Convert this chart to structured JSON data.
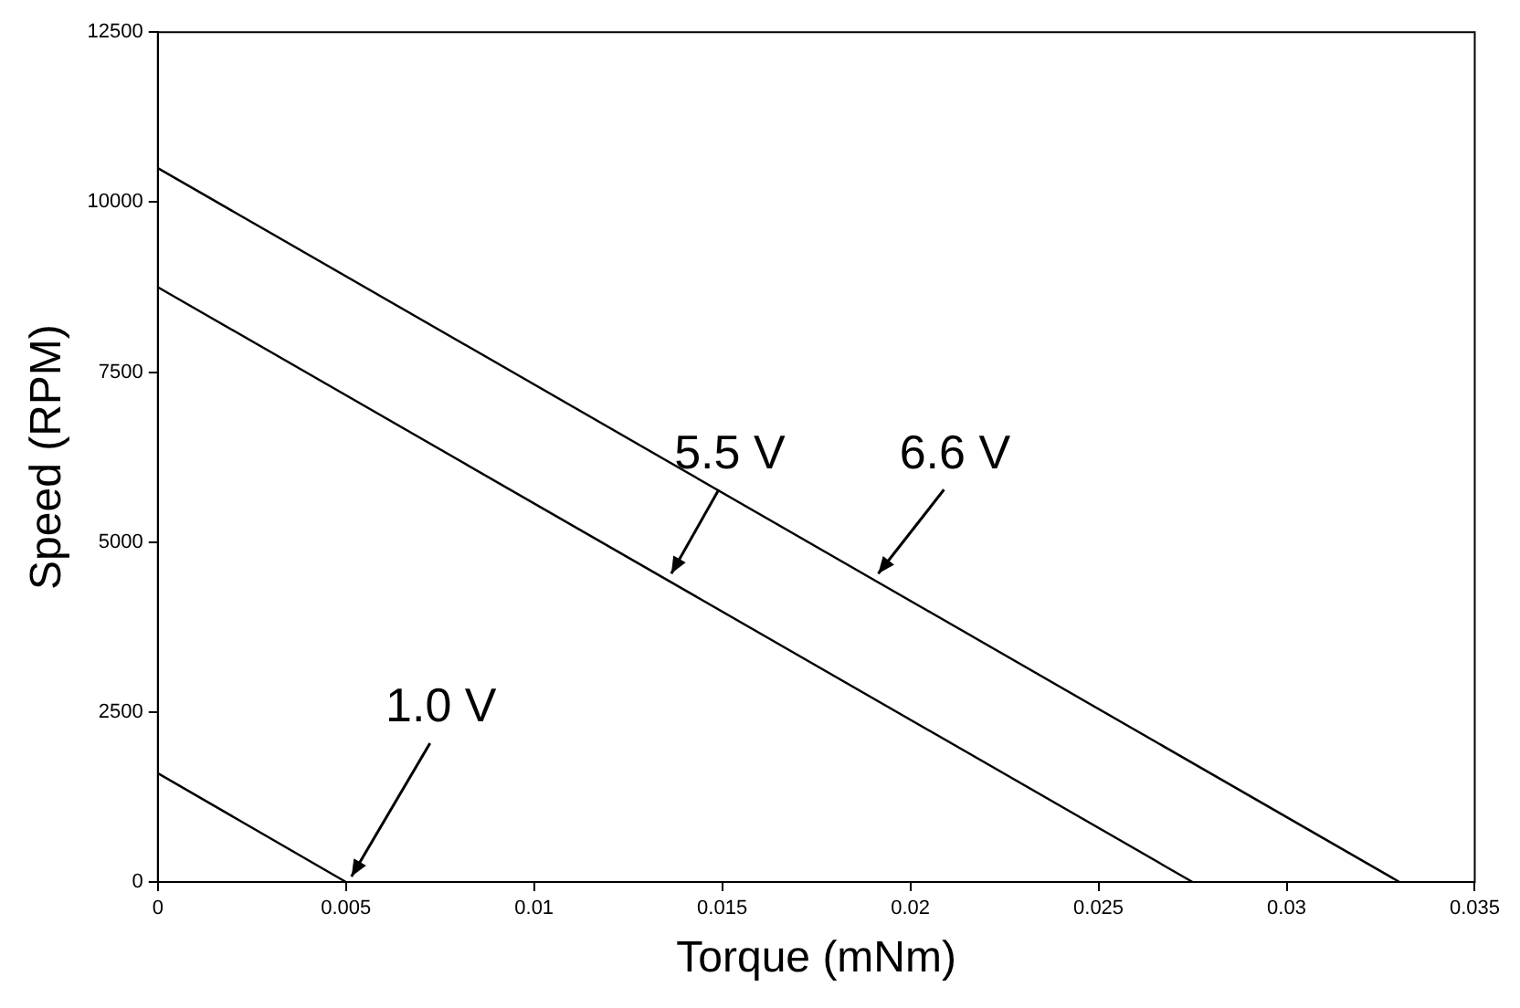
{
  "chart_data": {
    "type": "line",
    "xlabel": "Torque (mNm)",
    "ylabel": "Speed (RPM)",
    "marker": "none",
    "line_style": "solid",
    "grid": false,
    "xlim": [
      0,
      0.035
    ],
    "xticks": [
      0,
      0.005,
      0.01,
      0.015,
      0.02,
      0.025,
      0.03,
      0.035
    ],
    "ylim": [
      0,
      12500
    ],
    "yticks": [
      0,
      2500,
      5000,
      7500,
      10000,
      12500
    ],
    "series": [
      {
        "color": "#000000",
        "x": [
          0,
          0.033
        ],
        "values": [
          10500,
          0
        ]
      },
      {
        "color": "#000000",
        "x": [
          0,
          0.0275
        ],
        "values": [
          8750,
          0
        ]
      },
      {
        "color": "#000000",
        "x": [
          0,
          0.005
        ],
        "values": [
          1600,
          0
        ]
      }
    ],
    "annotations": [
      {
        "text": "5.5 V",
        "x": 0.0135,
        "y": 4455
      },
      {
        "text": "6.6 V",
        "x": 0.019,
        "y": 4455
      },
      {
        "text": "1.0 V",
        "x": 0.005,
        "y": 0
      }
    ]
  }
}
